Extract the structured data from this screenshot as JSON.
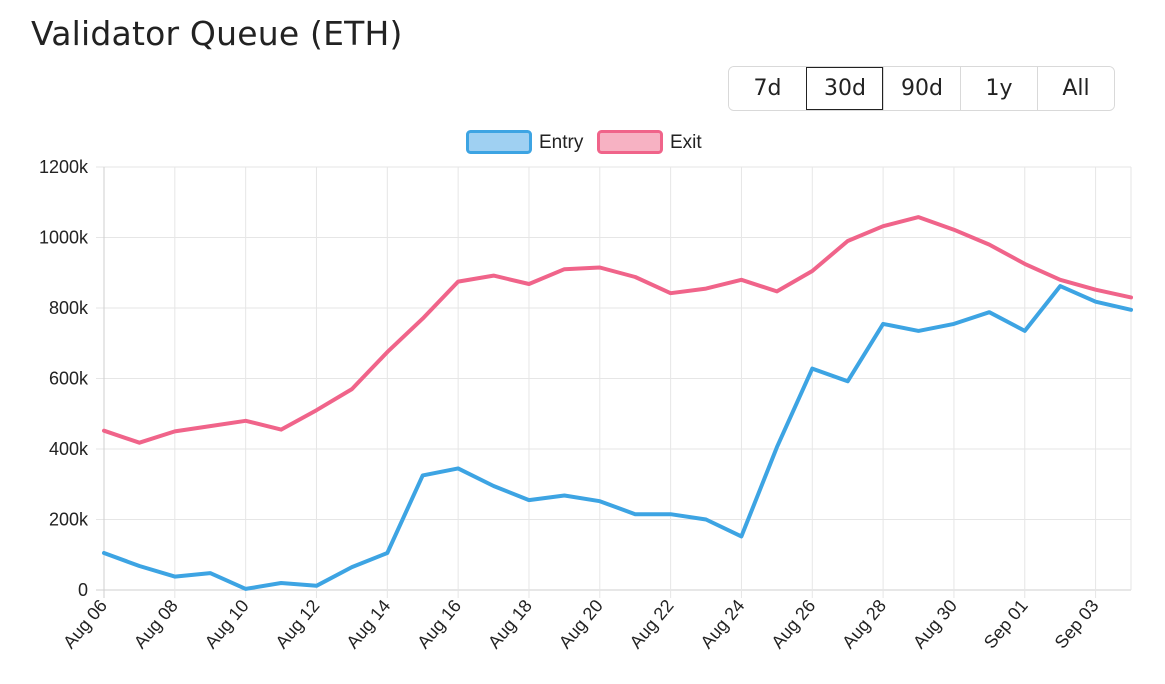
{
  "page": {
    "title": "Validator Queue (ETH)"
  },
  "range_selector": {
    "options": [
      "7d",
      "30d",
      "90d",
      "1y",
      "All"
    ],
    "selected": "30d"
  },
  "colors": {
    "entry": "#3da4e3",
    "exit": "#f0648a",
    "entry_fill": "#9fd0f2",
    "exit_fill": "#f7b2c3",
    "grid": "#e6e6e6"
  },
  "chart_data": {
    "type": "line",
    "title": "",
    "xlabel": "",
    "ylabel": "",
    "ylim": [
      0,
      1200
    ],
    "y_ticks": [
      0,
      200,
      400,
      600,
      800,
      1000,
      1200
    ],
    "y_tick_labels": [
      "0",
      "200k",
      "400k",
      "600k",
      "800k",
      "1000k",
      "1200k"
    ],
    "grid": true,
    "legend_position": "top-center",
    "categories": [
      "Aug 06",
      "Aug 07",
      "Aug 08",
      "Aug 09",
      "Aug 10",
      "Aug 11",
      "Aug 12",
      "Aug 13",
      "Aug 14",
      "Aug 15",
      "Aug 16",
      "Aug 17",
      "Aug 18",
      "Aug 19",
      "Aug 20",
      "Aug 21",
      "Aug 22",
      "Aug 23",
      "Aug 24",
      "Aug 25",
      "Aug 26",
      "Aug 27",
      "Aug 28",
      "Aug 29",
      "Aug 30",
      "Aug 31",
      "Sep 01",
      "Sep 02",
      "Sep 03",
      "Sep 04"
    ],
    "x_tick_labels": [
      "Aug 06",
      "Aug 08",
      "Aug 10",
      "Aug 12",
      "Aug 14",
      "Aug 16",
      "Aug 18",
      "Aug 20",
      "Aug 22",
      "Aug 24",
      "Aug 26",
      "Aug 28",
      "Aug 30",
      "Sep 01",
      "Sep 03"
    ],
    "series": [
      {
        "name": "Entry",
        "values": [
          105,
          68,
          38,
          48,
          3,
          20,
          12,
          65,
          105,
          325,
          345,
          295,
          255,
          268,
          252,
          215,
          215,
          200,
          152,
          405,
          628,
          592,
          755,
          735,
          755,
          788,
          735,
          862,
          818,
          795
        ]
      },
      {
        "name": "Exit",
        "values": [
          452,
          418,
          450,
          465,
          480,
          455,
          510,
          570,
          675,
          770,
          875,
          892,
          868,
          910,
          915,
          888,
          842,
          855,
          880,
          847,
          905,
          990,
          1032,
          1058,
          1022,
          980,
          925,
          880,
          852,
          830
        ]
      }
    ]
  }
}
